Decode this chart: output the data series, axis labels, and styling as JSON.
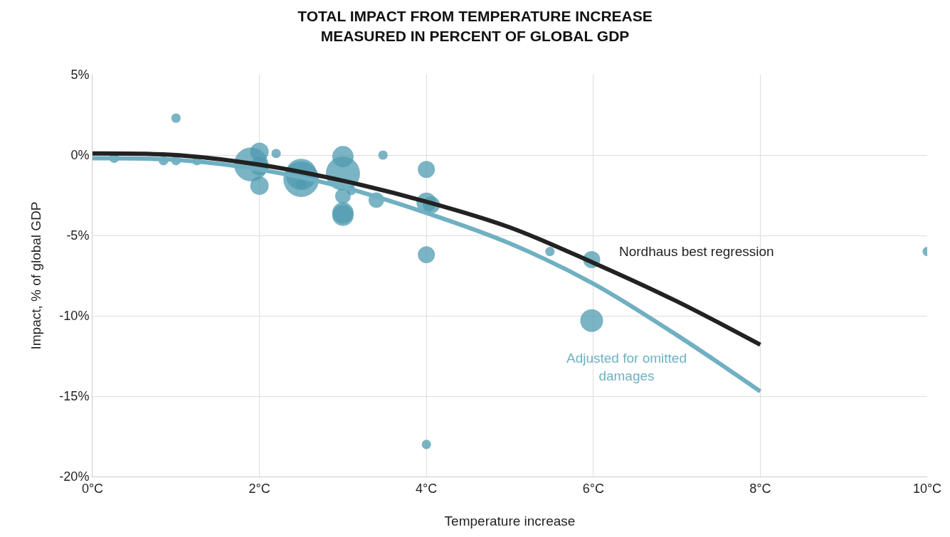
{
  "chart_data": {
    "type": "bubble",
    "title": "TOTAL IMPACT FROM TEMPERATURE INCREASE\nMEASURED IN PERCENT OF GLOBAL GDP",
    "xlabel": "Temperature increase",
    "ylabel": "Impact, % of global GDP",
    "xlim": [
      0,
      10
    ],
    "ylim": [
      -20,
      5
    ],
    "xticks": [
      {
        "value": 0,
        "label": "0°C"
      },
      {
        "value": 2,
        "label": "2°C"
      },
      {
        "value": 4,
        "label": "4°C"
      },
      {
        "value": 6,
        "label": "6°C"
      },
      {
        "value": 8,
        "label": "8°C"
      },
      {
        "value": 10,
        "label": "10°C"
      }
    ],
    "yticks": [
      {
        "value": 5,
        "label": "5%"
      },
      {
        "value": 0,
        "label": "0%"
      },
      {
        "value": -5,
        "label": "-5%"
      },
      {
        "value": -10,
        "label": "-10%"
      },
      {
        "value": -15,
        "label": "-15%"
      },
      {
        "value": -20,
        "label": "-20%"
      }
    ],
    "grid": true,
    "series": [
      {
        "color": "#4f9bb0",
        "x": [
          0.26,
          1.0,
          0.85,
          1.0,
          1.25,
          1.9,
          2.0,
          2.0,
          2.0,
          2.2,
          2.5,
          2.5,
          2.5,
          3.0,
          3.0,
          3.1,
          3.0,
          3.0,
          3.0,
          3.48,
          3.4,
          4.0,
          4.0,
          4.06,
          4.0,
          5.48,
          5.98,
          5.98,
          4.0,
          10.0
        ],
        "values": [
          -0.18,
          2.3,
          -0.35,
          -0.35,
          -0.35,
          -0.58,
          0.2,
          -0.7,
          -1.9,
          0.1,
          -1.2,
          -1.5,
          -1.8,
          -0.1,
          -1.15,
          -2.2,
          -2.55,
          -3.6,
          -3.75,
          0.0,
          -2.8,
          -0.9,
          -2.95,
          -3.1,
          -6.2,
          -6.0,
          -6.5,
          -10.3,
          -18.0,
          -6.0
        ],
        "sizes": [
          0.08,
          0.07,
          0.07,
          0.07,
          0.07,
          0.92,
          0.27,
          0.27,
          0.27,
          0.07,
          0.77,
          1.0,
          0.09,
          0.36,
          0.92,
          0.07,
          0.19,
          0.36,
          0.36,
          0.07,
          0.19,
          0.23,
          0.31,
          0.23,
          0.23,
          0.07,
          0.23,
          0.41,
          0.07,
          0.07
        ]
      },
      {
        "type": "line",
        "name": "Adjusted for omitted\ndamages",
        "color": "#6fb0c2",
        "x": [
          0,
          1,
          2,
          3,
          4,
          5,
          6,
          7,
          8
        ],
        "values": [
          -0.2,
          -0.3,
          -0.9,
          -2.0,
          -3.6,
          -5.5,
          -8.0,
          -11.2,
          -14.7
        ]
      },
      {
        "type": "line",
        "name": "Nordhaus best regression",
        "color": "#222222",
        "x": [
          0,
          1,
          2,
          3,
          4,
          5,
          6,
          7,
          8
        ],
        "values": [
          0.1,
          0.0,
          -0.6,
          -1.6,
          -2.9,
          -4.5,
          -6.7,
          -9.1,
          -11.8
        ]
      }
    ]
  }
}
